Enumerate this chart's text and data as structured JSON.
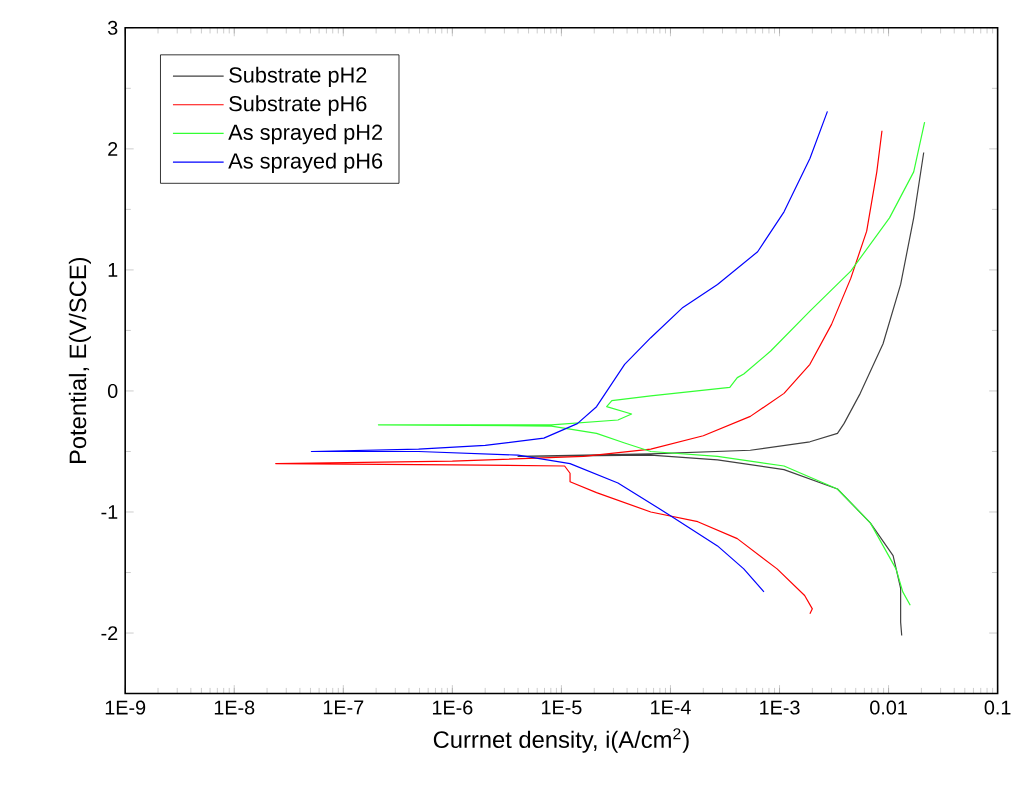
{
  "chart_data": {
    "type": "line",
    "xlabel": "Currnet density, i(A/cm$^{2}$)",
    "ylabel": "Potential, E(V/SCE)",
    "log": "x",
    "xlim": [
      1e-09,
      0.1
    ],
    "ylim": [
      -2.5,
      3
    ],
    "xticks": [
      {
        "value": 1e-09,
        "label": "1E-9"
      },
      {
        "value": 1e-08,
        "label": "1E-8"
      },
      {
        "value": 1e-07,
        "label": "1E-7"
      },
      {
        "value": 1e-06,
        "label": "1E-6"
      },
      {
        "value": 1e-05,
        "label": "1E-5"
      },
      {
        "value": 0.0001,
        "label": "1E-4"
      },
      {
        "value": 0.001,
        "label": "1E-3"
      },
      0.01,
      0.1
    ],
    "yticks": [
      -2,
      -1,
      0,
      1,
      2,
      3
    ],
    "legend": "top left",
    "marker": "none",
    "line_style": "solid",
    "grid": false,
    "series": [
      {
        "name": "Substrate pH2",
        "color": "#404040",
        "x": [
          0.0132,
          0.0129,
          0.0129,
          0.011,
          0.0068,
          0.0034,
          0.0011,
          0.00027,
          6.6e-05,
          4e-06,
          6.6e-05,
          0.00054,
          0.0019,
          0.0034,
          0.0039,
          0.0055,
          0.0089,
          0.0129,
          0.017,
          0.021
        ],
        "values": [
          -2.02,
          -1.91,
          -1.63,
          -1.36,
          -1.09,
          -0.81,
          -0.65,
          -0.57,
          -0.53,
          -0.54,
          -0.52,
          -0.49,
          -0.42,
          -0.35,
          -0.27,
          -0.02,
          0.39,
          0.88,
          1.43,
          1.97
        ]
      },
      {
        "name": "Substrate pH6",
        "color": "#ff0000",
        "x": [
          0.0019,
          0.002,
          0.0017,
          0.00095,
          0.00041,
          0.000178,
          6.6e-05,
          2.1e-05,
          1.2e-05,
          1.2e-05,
          1.07e-05,
          1e-06,
          2.4e-08,
          1e-06,
          1.6e-05,
          6.6e-05,
          0.0002,
          0.00054,
          0.0011,
          0.0019,
          0.003,
          0.0045,
          0.0063,
          0.0078,
          0.0087
        ],
        "values": [
          -1.84,
          -1.8,
          -1.69,
          -1.47,
          -1.22,
          -1.08,
          -1.0,
          -0.84,
          -0.75,
          -0.68,
          -0.62,
          -0.61,
          -0.6,
          -0.58,
          -0.54,
          -0.48,
          -0.37,
          -0.21,
          -0.02,
          0.22,
          0.55,
          0.93,
          1.32,
          1.81,
          2.15
        ]
      },
      {
        "name": "As sprayed pH2",
        "color": "#33ff33",
        "x": [
          0.0158,
          0.0135,
          0.0117,
          0.0068,
          0.0034,
          0.0011,
          0.00027,
          6.6e-05,
          3.8e-05,
          2.1e-05,
          8.1e-06,
          2.1e-07,
          8.1e-06,
          3.3e-05,
          4.4e-05,
          2.6e-05,
          2.9e-05,
          6.6e-05,
          0.00035,
          0.00041,
          0.00047,
          0.00083,
          0.0019,
          0.0045,
          0.0102,
          0.017,
          0.0214
        ],
        "values": [
          -1.77,
          -1.66,
          -1.47,
          -1.09,
          -0.81,
          -0.62,
          -0.54,
          -0.5,
          -0.43,
          -0.35,
          -0.29,
          -0.28,
          -0.28,
          -0.24,
          -0.19,
          -0.13,
          -0.08,
          -0.04,
          0.03,
          0.11,
          0.14,
          0.33,
          0.66,
          0.99,
          1.43,
          1.81,
          2.22
        ]
      },
      {
        "name": "As sprayed pH6",
        "color": "#0000ff",
        "x": [
          0.00072,
          0.00047,
          0.00027,
          0.0001,
          3.3e-05,
          1.2e-05,
          4e-06,
          4.9e-07,
          5.1e-08,
          4.9e-07,
          2e-06,
          6.9e-06,
          1.4e-05,
          2.1e-05,
          2.9e-05,
          3.8e-05,
          6.6e-05,
          0.00013,
          0.00027,
          0.00063,
          0.0011,
          0.0019,
          0.00275
        ],
        "values": [
          -1.66,
          -1.47,
          -1.28,
          -1.03,
          -0.76,
          -0.6,
          -0.53,
          -0.5,
          -0.5,
          -0.48,
          -0.45,
          -0.39,
          -0.27,
          -0.13,
          0.06,
          0.22,
          0.44,
          0.69,
          0.88,
          1.15,
          1.48,
          1.92,
          2.31
        ]
      }
    ]
  }
}
